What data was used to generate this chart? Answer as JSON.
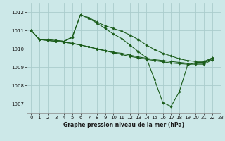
{
  "title": "Graphe pression niveau de la mer (hPa)",
  "background_color": "#cce8e8",
  "grid_color": "#aacccc",
  "line_color": "#1a5c1a",
  "xlim": [
    -0.5,
    23
  ],
  "ylim": [
    1006.5,
    1012.5
  ],
  "xticks": [
    0,
    1,
    2,
    3,
    4,
    5,
    6,
    7,
    8,
    9,
    10,
    11,
    12,
    13,
    14,
    15,
    16,
    17,
    18,
    19,
    20,
    21,
    22,
    23
  ],
  "yticks": [
    1007,
    1008,
    1009,
    1010,
    1011,
    1012
  ],
  "series": [
    {
      "x": [
        0,
        1,
        2,
        3,
        4,
        5,
        6,
        7,
        8,
        9,
        10,
        11,
        12,
        13,
        14,
        15,
        16,
        17,
        18,
        19,
        20,
        21,
        22
      ],
      "y": [
        1011.0,
        1010.5,
        1010.5,
        1010.45,
        1010.4,
        1010.65,
        1011.85,
        1011.7,
        1011.45,
        1011.25,
        1011.1,
        1010.95,
        1010.75,
        1010.5,
        1010.2,
        1009.95,
        1009.75,
        1009.6,
        1009.45,
        1009.35,
        1009.3,
        1009.3,
        1009.5
      ]
    },
    {
      "x": [
        3,
        4,
        5,
        6,
        7,
        8,
        9,
        10,
        11,
        12,
        13,
        14,
        15,
        16,
        17,
        18,
        19,
        20,
        21,
        22
      ],
      "y": [
        1010.45,
        1010.4,
        1010.6,
        1011.85,
        1011.65,
        1011.4,
        1011.1,
        1010.8,
        1010.55,
        1010.2,
        1009.85,
        1009.5,
        1008.3,
        1007.05,
        1006.85,
        1007.65,
        1009.1,
        1009.25,
        1009.25,
        1009.45
      ]
    },
    {
      "x": [
        0,
        1,
        2,
        3,
        4,
        5,
        6,
        7,
        8,
        9,
        10,
        11,
        12,
        13,
        14,
        15,
        16,
        17,
        18,
        19,
        20,
        21,
        22
      ],
      "y": [
        1011.0,
        1010.5,
        1010.45,
        1010.4,
        1010.35,
        1010.3,
        1010.2,
        1010.1,
        1010.0,
        1009.9,
        1009.8,
        1009.75,
        1009.65,
        1009.55,
        1009.48,
        1009.4,
        1009.35,
        1009.3,
        1009.25,
        1009.2,
        1009.2,
        1009.2,
        1009.5
      ]
    },
    {
      "x": [
        0,
        1,
        2,
        3,
        4,
        5,
        6,
        7,
        8,
        9,
        10,
        11,
        12,
        13,
        14,
        15,
        16,
        17,
        18,
        19,
        20,
        21,
        22
      ],
      "y": [
        1011.0,
        1010.5,
        1010.45,
        1010.4,
        1010.35,
        1010.28,
        1010.2,
        1010.1,
        1009.98,
        1009.88,
        1009.78,
        1009.68,
        1009.58,
        1009.5,
        1009.42,
        1009.35,
        1009.28,
        1009.22,
        1009.18,
        1009.15,
        1009.15,
        1009.15,
        1009.4
      ]
    }
  ]
}
